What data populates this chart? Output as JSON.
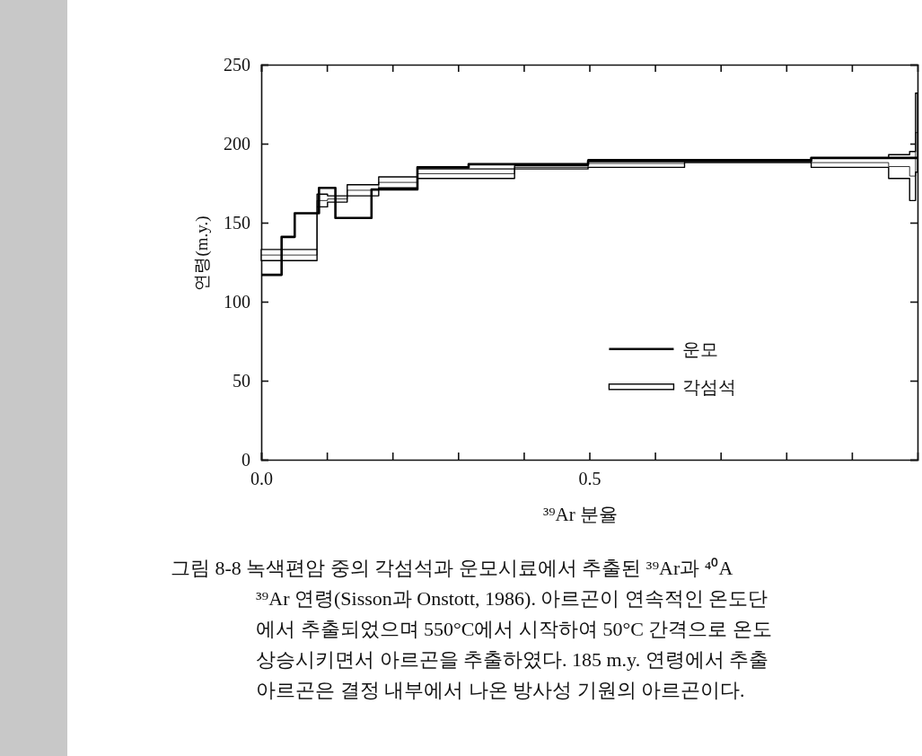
{
  "chart_data": {
    "type": "step",
    "xlabel": "³⁹Ar 분율",
    "ylabel": "연령(m.y.)",
    "xlim": [
      0,
      1
    ],
    "xticks": [
      {
        "value": 0,
        "label": "0.0"
      },
      {
        "value": 0.1,
        "label": null
      },
      {
        "value": 0.2,
        "label": null
      },
      {
        "value": 0.3,
        "label": null
      },
      {
        "value": 0.4,
        "label": null
      },
      {
        "value": 0.5,
        "label": "0.5"
      },
      {
        "value": 0.6,
        "label": null
      },
      {
        "value": 0.7,
        "label": null
      },
      {
        "value": 0.8,
        "label": null
      },
      {
        "value": 0.9,
        "label": null
      }
    ],
    "ylim": [
      0,
      250
    ],
    "yticks": [
      0,
      50,
      100,
      150,
      200,
      250
    ],
    "legend": "bottom",
    "grid": false,
    "series": [
      {
        "name": "운모",
        "color": "#000000",
        "x": [
          0,
          0.031,
          0.051,
          0.088,
          0.113,
          0.168,
          0.238,
          0.316,
          0.498,
          0.838,
          1.0
        ],
        "values": [
          117,
          141,
          156,
          172,
          153,
          171,
          185,
          187,
          189,
          191,
          191
        ]
      },
      {
        "name": "각섬석",
        "color": "#000000",
        "x": [
          0,
          0.085,
          0.101,
          0.131,
          0.179,
          0.238,
          0.386,
          0.498,
          0.645,
          0.838,
          0.956,
          0.988,
          0.997,
          1.0
        ],
        "values": [
          129.5,
          164,
          165,
          170.5,
          175.5,
          181,
          185,
          187.5,
          189,
          188,
          185.5,
          179.5,
          207,
          207
        ],
        "lower": [
          126,
          160,
          163,
          167,
          172,
          178,
          184,
          185,
          188,
          185,
          178,
          164,
          182,
          182
        ],
        "upper": [
          133,
          168,
          167,
          174,
          179,
          184,
          186,
          190,
          190,
          191,
          193,
          195,
          232,
          232
        ]
      }
    ],
    "annotations": [
      "그림 8-8 녹색편암 중의 각섬석과 운모시료에서 추출된 ³⁹Ar과 ⁴⁰A",
      "³⁹Ar 연령(Sisson과 Onstott, 1986). 아르곤이 연속적인 온도단",
      "에서 추출되었으며 550°C에서 시작하여 50°C 간격으로 온도",
      "상승시키면서 아르곤을 추출하였다. 185 m.y. 연령에서 추출",
      "아르곤은 결정 내부에서 나온 방사성 기원의 아르곤이다."
    ]
  }
}
